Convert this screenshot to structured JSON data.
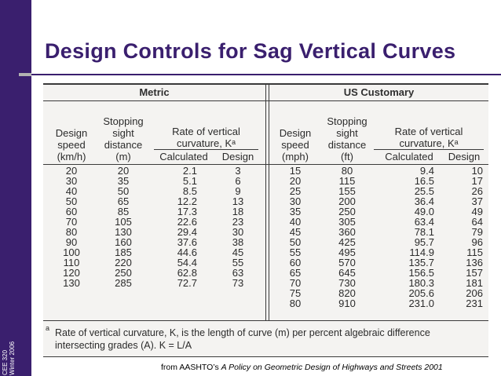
{
  "sidebar": {
    "course": "CEE 320",
    "term": "Winter 2006"
  },
  "slide": {
    "title": "Design Controls for Sag Vertical Curves"
  },
  "table": {
    "group_headers": {
      "metric": "Metric",
      "us": "US Customary"
    },
    "metric_headers": {
      "speed": [
        "Design",
        "speed",
        "(km/h)"
      ],
      "ssd": [
        "Stopping",
        "sight",
        "distance",
        "(m)"
      ],
      "k": [
        "Rate of vertical",
        "curvature, Kᵃ"
      ],
      "calc": "Calculated",
      "design": "Design"
    },
    "us_headers": {
      "speed": [
        "Design",
        "speed",
        "(mph)"
      ],
      "ssd": [
        "Stopping",
        "sight",
        "distance",
        "(ft)"
      ],
      "k": [
        "Rate of vertical",
        "curvature, Kᵃ"
      ],
      "calc": "Calculated",
      "design": "Design"
    },
    "metric_rows": [
      [
        "20",
        "20",
        "2.1",
        "3"
      ],
      [
        "30",
        "35",
        "5.1",
        "6"
      ],
      [
        "40",
        "50",
        "8.5",
        "9"
      ],
      [
        "50",
        "65",
        "12.2",
        "13"
      ],
      [
        "60",
        "85",
        "17.3",
        "18"
      ],
      [
        "70",
        "105",
        "22.6",
        "23"
      ],
      [
        "80",
        "130",
        "29.4",
        "30"
      ],
      [
        "90",
        "160",
        "37.6",
        "38"
      ],
      [
        "100",
        "185",
        "44.6",
        "45"
      ],
      [
        "110",
        "220",
        "54.4",
        "55"
      ],
      [
        "120",
        "250",
        "62.8",
        "63"
      ],
      [
        "130",
        "285",
        "72.7",
        "73"
      ]
    ],
    "us_rows": [
      [
        "15",
        "80",
        "9.4",
        "10"
      ],
      [
        "20",
        "115",
        "16.5",
        "17"
      ],
      [
        "25",
        "155",
        "25.5",
        "26"
      ],
      [
        "30",
        "200",
        "36.4",
        "37"
      ],
      [
        "35",
        "250",
        "49.0",
        "49"
      ],
      [
        "40",
        "305",
        "63.4",
        "64"
      ],
      [
        "45",
        "360",
        "78.1",
        "79"
      ],
      [
        "50",
        "425",
        "95.7",
        "96"
      ],
      [
        "55",
        "495",
        "114.9",
        "115"
      ],
      [
        "60",
        "570",
        "135.7",
        "136"
      ],
      [
        "65",
        "645",
        "156.5",
        "157"
      ],
      [
        "70",
        "730",
        "180.3",
        "181"
      ],
      [
        "75",
        "820",
        "205.6",
        "206"
      ],
      [
        "80",
        "910",
        "231.0",
        "231"
      ]
    ],
    "footnote_mark": "a",
    "footnote_line1": "Rate of vertical curvature, K, is the length of curve (m) per percent algebraic difference",
    "footnote_line2": "intersecting grades (A).  K = L/A"
  },
  "citation": {
    "prefix": "from AASHTO’s ",
    "title": "A Policy on Geometric Design of Highways and Streets 2001"
  },
  "colors": {
    "brand": "#3a1f6e",
    "accent": "#b2b2b2"
  }
}
